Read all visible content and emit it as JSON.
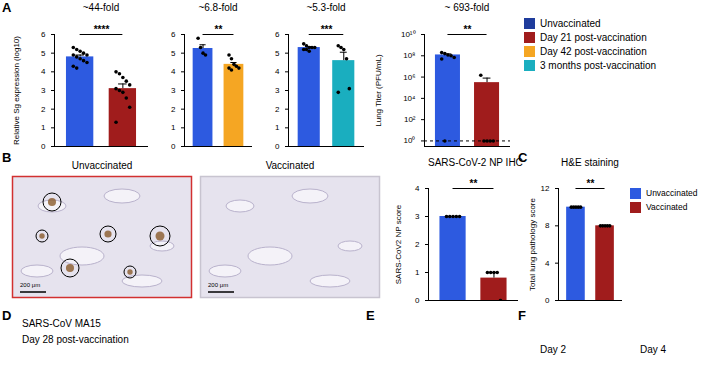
{
  "chart_data": [
    {
      "type": "bar",
      "title": "~44-fold",
      "y_label": "Relative Sg expression (log10)",
      "categories": [
        "Unvaccinated",
        "Day 21 post-vaccination"
      ],
      "colors": [
        "#2d5ae0",
        "#a01c1c"
      ],
      "values": [
        4.8,
        3.1
      ],
      "errors": [
        0.1,
        0.25
      ],
      "points": [
        [
          5.3,
          5.2,
          5.1,
          5.0,
          4.9,
          4.9,
          4.8,
          4.7,
          4.6,
          4.5,
          4.3,
          4.2
        ],
        [
          4.0,
          3.9,
          3.7,
          3.5,
          3.3,
          3.1,
          3.0,
          2.9,
          2.6,
          2.1,
          1.3
        ]
      ],
      "significance": "****",
      "ylim": [
        0,
        6
      ],
      "yticks": [
        0,
        1,
        2,
        3,
        4,
        5,
        6
      ],
      "tick_labels": "y"
    },
    {
      "type": "bar",
      "title": "~6.8-fold",
      "categories": [
        "Unvaccinated",
        "Day 42 post-vaccination"
      ],
      "colors": [
        "#2d5ae0",
        "#f5a623"
      ],
      "values": [
        5.25,
        4.4
      ],
      "errors": [
        0.2,
        0.1
      ],
      "points": [
        [
          5.8,
          5.3,
          5.0,
          4.9
        ],
        [
          4.9,
          4.7,
          4.4,
          4.3,
          4.2,
          4.2,
          4.1
        ]
      ],
      "significance": "**",
      "ylim": [
        0,
        6
      ],
      "yticks": [
        0,
        1,
        2,
        3,
        4,
        5,
        6
      ],
      "tick_labels": "y"
    },
    {
      "type": "bar",
      "title": "~5.3-fold",
      "categories": [
        "Unvaccinated",
        "3 months post-vaccination"
      ],
      "colors": [
        "#2d5ae0",
        "#1aaebf"
      ],
      "values": [
        5.3,
        4.6
      ],
      "errors": [
        0.05,
        0.45
      ],
      "points": [
        [
          5.5,
          5.4,
          5.3,
          5.3,
          5.3,
          5.2,
          5.2,
          5.1
        ],
        [
          5.4,
          5.3,
          5.2,
          4.7,
          3.1,
          2.9
        ]
      ],
      "significance": "***",
      "ylim": [
        0,
        6
      ],
      "yticks": [
        0,
        1,
        2,
        3,
        4,
        5,
        6
      ],
      "tick_labels": "y"
    },
    {
      "type": "bar",
      "title": "~ 693-fold",
      "y_label": "Lung Titer (PFU/mL)",
      "categories": [
        "Unvaccinated",
        "Day 21 post-vaccination"
      ],
      "colors": [
        "#2d5ae0",
        "#a01c1c"
      ],
      "values": [
        120000000,
        300000
      ],
      "errors": [
        30000000,
        500000
      ],
      "points": [
        [
          200000000,
          160000000,
          120000000,
          100000000,
          70000000,
          50000000,
          1
        ],
        [
          1500000,
          1,
          1,
          1,
          1
        ]
      ],
      "reference_line": 1,
      "significance": "**",
      "log": "y",
      "ylim": [
        0.3,
        10000000000
      ],
      "yticks": [
        {
          "value": 1,
          "label": "10⁰"
        },
        {
          "value": 100,
          "label": "10²"
        },
        {
          "value": 10000,
          "label": "10⁴"
        },
        {
          "value": 1000000,
          "label": "10⁶"
        },
        {
          "value": 100000000,
          "label": "10⁸"
        },
        {
          "value": 10000000000,
          "label": "10¹⁰"
        }
      ],
      "tick_labels": "y"
    },
    {
      "type": "bar",
      "title": "SARS-CoV-2 NP IHC",
      "y_label": "SARS-CoV2 NP score",
      "categories": [
        "Unvaccinated",
        "Vaccinated"
      ],
      "colors": [
        "#2d5ae0",
        "#a01c1c"
      ],
      "values": [
        3,
        0.8
      ],
      "errors": [
        0,
        0.2
      ],
      "points": [
        [
          3,
          3,
          3,
          3,
          3
        ],
        [
          1,
          1,
          1,
          1,
          0
        ]
      ],
      "significance": "**",
      "ylim": [
        0,
        4
      ],
      "yticks": [
        0,
        1,
        2,
        3,
        4
      ],
      "tick_labels": "y"
    },
    {
      "type": "bar",
      "title": "H&E staining",
      "y_label": "Total lung pathology score",
      "categories": [
        "Unvaccinated",
        "Vaccinated"
      ],
      "colors": [
        "#2d5ae0",
        "#a01c1c"
      ],
      "values": [
        10,
        8
      ],
      "errors": [
        0,
        0
      ],
      "points": [
        [
          10,
          10,
          10,
          10,
          10
        ],
        [
          8,
          8,
          8,
          8,
          8
        ]
      ],
      "significance": "**",
      "ylim": [
        0,
        12
      ],
      "yticks": [
        0,
        4,
        8,
        12
      ],
      "tick_labels": "y"
    }
  ],
  "panel_labels": [
    "A",
    "B",
    "C",
    "D",
    "E",
    "F"
  ],
  "legends": [
    {
      "entries": [
        {
          "name": "Unvaccinated",
          "color": "#1f3c9c"
        },
        {
          "name": "Day 21 post-vaccination",
          "color": "#a01c1c"
        },
        {
          "name": "Day 42 post-vaccination",
          "color": "#f5a623"
        },
        {
          "name": "3 months post-vaccination",
          "color": "#1aaebf"
        }
      ]
    },
    {
      "entries": [
        {
          "name": "Unvaccinated",
          "color": "#2d5ae0"
        },
        {
          "name": "Vaccinated",
          "color": "#a01c1c"
        }
      ]
    }
  ],
  "images": {
    "labels": [
      "Unvaccinated",
      "Vaccinated"
    ],
    "scale_bar": "200 μm"
  },
  "bottom_texts": [
    "SARS-CoV MA15",
    "Day 28 post-vaccination",
    "Day 2",
    "Day 4"
  ]
}
